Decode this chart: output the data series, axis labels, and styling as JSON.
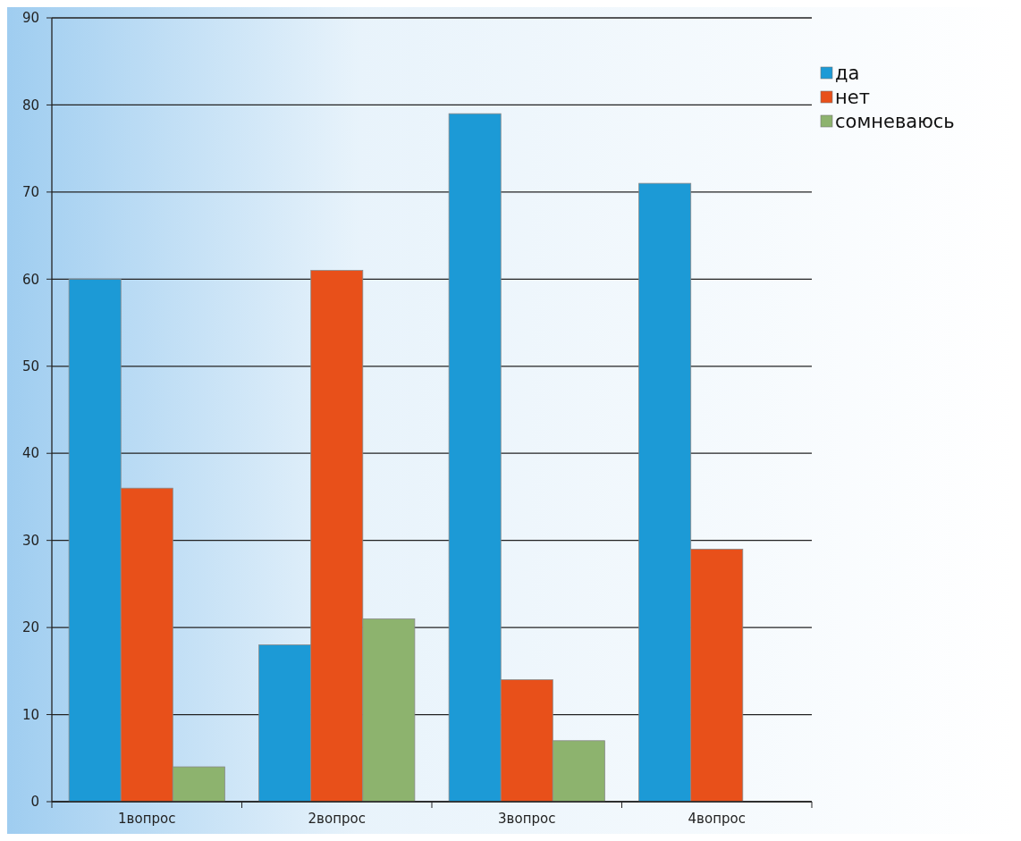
{
  "chart_data": {
    "type": "bar",
    "categories": [
      "1вопрос",
      "2вопрос",
      "3вопрос",
      "4вопрос"
    ],
    "series": [
      {
        "name": "да",
        "color": "#1c9ad6",
        "values": [
          60,
          18,
          79,
          71
        ]
      },
      {
        "name": "нет",
        "color": "#e8501a",
        "values": [
          36,
          61,
          14,
          29
        ]
      },
      {
        "name": "сомневаюсь",
        "color": "#8db36e",
        "values": [
          4,
          21,
          7,
          null
        ]
      }
    ],
    "ylim": [
      0,
      90
    ],
    "yticks": [
      0,
      10,
      20,
      30,
      40,
      50,
      60,
      70,
      80,
      90
    ],
    "grid": "y",
    "legend": "top right"
  }
}
